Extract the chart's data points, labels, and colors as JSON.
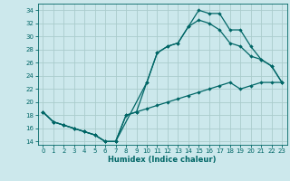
{
  "xlabel": "Humidex (Indice chaleur)",
  "bg_color": "#cce8ec",
  "grid_color": "#aacccc",
  "line_color": "#006666",
  "xlim": [
    -0.5,
    23.5
  ],
  "ylim": [
    13.5,
    35
  ],
  "xticks": [
    0,
    1,
    2,
    3,
    4,
    5,
    6,
    7,
    8,
    9,
    10,
    11,
    12,
    13,
    14,
    15,
    16,
    17,
    18,
    19,
    20,
    21,
    22,
    23
  ],
  "yticks": [
    14,
    16,
    18,
    20,
    22,
    24,
    26,
    28,
    30,
    32,
    34
  ],
  "line1_x": [
    0,
    1,
    2,
    3,
    4,
    5,
    6,
    7,
    8,
    9,
    10,
    11,
    12,
    13,
    14,
    15,
    16,
    17,
    18,
    19,
    20,
    21,
    22,
    23
  ],
  "line1_y": [
    18.5,
    17.0,
    16.5,
    16.0,
    15.5,
    15.0,
    14.0,
    14.0,
    18.0,
    18.5,
    23.0,
    27.5,
    28.5,
    29.0,
    31.5,
    32.5,
    32.0,
    31.0,
    29.0,
    28.5,
    27.0,
    26.5,
    25.5,
    23.0
  ],
  "line2_x": [
    0,
    1,
    2,
    3,
    4,
    5,
    6,
    7,
    8,
    9,
    10,
    11,
    12,
    13,
    14,
    15,
    16,
    17,
    18,
    19,
    20,
    21,
    22,
    23
  ],
  "line2_y": [
    18.5,
    17.0,
    16.5,
    16.0,
    15.5,
    15.0,
    14.0,
    14.0,
    18.0,
    18.5,
    19.0,
    19.5,
    20.0,
    20.5,
    21.0,
    21.5,
    22.0,
    22.5,
    23.0,
    22.0,
    22.5,
    23.0,
    23.0,
    23.0
  ],
  "line3_x": [
    0,
    1,
    2,
    3,
    4,
    5,
    6,
    7,
    10,
    11,
    12,
    13,
    14,
    15,
    16,
    17,
    18,
    19,
    20,
    21,
    22,
    23
  ],
  "line3_y": [
    18.5,
    17.0,
    16.5,
    16.0,
    15.5,
    15.0,
    14.0,
    14.0,
    23.0,
    27.5,
    28.5,
    29.0,
    31.5,
    34.0,
    33.5,
    33.5,
    31.0,
    31.0,
    28.5,
    26.5,
    25.5,
    23.0
  ]
}
